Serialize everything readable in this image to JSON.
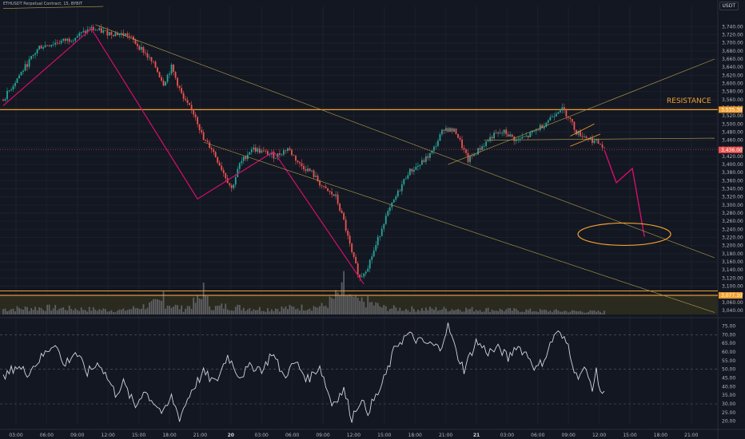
{
  "header": {
    "symbol_line": "ETHUSDT Perpetual Contract, 15, BYBIT",
    "currency": "USDT"
  },
  "annotation": {
    "resistance_label": "RESISTANCE"
  },
  "price_tags": {
    "resistance": "3,535.30",
    "current": "3,436.00",
    "support": "3,077.10"
  },
  "colors": {
    "up": "#26a69a",
    "down": "#ef5350",
    "orange": "#f0a030",
    "trend": "#d40e6b",
    "bg": "#131722"
  },
  "chart_data": [
    {
      "type": "candlestick",
      "title": "",
      "ylim": [
        3030,
        3790
      ],
      "y_ticks": [
        3040,
        3060,
        3080,
        3100,
        3120,
        3140,
        3160,
        3180,
        3200,
        3220,
        3240,
        3260,
        3280,
        3300,
        3320,
        3340,
        3360,
        3380,
        3400,
        3420,
        3440,
        3460,
        3480,
        3500,
        3520,
        3540,
        3560,
        3580,
        3600,
        3620,
        3640,
        3660,
        3680,
        3700,
        3720,
        3740
      ],
      "x_ticks": [
        "03:00",
        "06:00",
        "09:00",
        "12:00",
        "15:00",
        "18:00",
        "21:00",
        "20",
        "03:00",
        "06:00",
        "09:00",
        "12:00",
        "15:00",
        "18:00",
        "21:00",
        "21",
        "03:00",
        "06:00",
        "09:00",
        "12:00",
        "15:00",
        "18:00",
        "21:00"
      ],
      "price_path": [
        [
          0,
          3560
        ],
        [
          8,
          3620
        ],
        [
          18,
          3690
        ],
        [
          26,
          3700
        ],
        [
          34,
          3710
        ],
        [
          44,
          3735
        ],
        [
          52,
          3725
        ],
        [
          62,
          3720
        ],
        [
          70,
          3680
        ],
        [
          76,
          3640
        ],
        [
          80,
          3600
        ],
        [
          84,
          3640
        ],
        [
          90,
          3560
        ],
        [
          96,
          3520
        ],
        [
          100,
          3460
        ],
        [
          104,
          3440
        ],
        [
          108,
          3400
        ],
        [
          114,
          3340
        ],
        [
          118,
          3400
        ],
        [
          124,
          3440
        ],
        [
          130,
          3430
        ],
        [
          136,
          3420
        ],
        [
          142,
          3440
        ],
        [
          148,
          3400
        ],
        [
          154,
          3380
        ],
        [
          160,
          3340
        ],
        [
          166,
          3320
        ],
        [
          170,
          3260
        ],
        [
          174,
          3180
        ],
        [
          178,
          3120
        ],
        [
          182,
          3150
        ],
        [
          186,
          3200
        ],
        [
          190,
          3260
        ],
        [
          196,
          3320
        ],
        [
          202,
          3380
        ],
        [
          208,
          3400
        ],
        [
          214,
          3430
        ],
        [
          220,
          3490
        ],
        [
          226,
          3480
        ],
        [
          232,
          3410
        ],
        [
          238,
          3440
        ],
        [
          244,
          3470
        ],
        [
          250,
          3480
        ],
        [
          256,
          3460
        ],
        [
          262,
          3470
        ],
        [
          270,
          3500
        ],
        [
          278,
          3540
        ],
        [
          282,
          3520
        ],
        [
          286,
          3480
        ],
        [
          290,
          3470
        ],
        [
          294,
          3460
        ],
        [
          298,
          3450
        ],
        [
          300,
          3436
        ]
      ],
      "trend_path": [
        [
          0,
          3545
        ],
        [
          44,
          3735
        ],
        [
          97,
          3315
        ],
        [
          135,
          3432
        ],
        [
          180,
          3105
        ]
      ],
      "projection_path": [
        [
          300,
          3436
        ],
        [
          306,
          3355
        ],
        [
          314,
          3390
        ],
        [
          320,
          3222
        ]
      ],
      "levels": {
        "resistance": 3535.3,
        "current": 3436.0,
        "support": 3077.1
      }
    },
    {
      "type": "bar",
      "title": "",
      "ylabel": "",
      "levels": [
        [
          0,
          8
        ],
        [
          20,
          10
        ],
        [
          40,
          8
        ],
        [
          60,
          6
        ],
        [
          80,
          18
        ],
        [
          90,
          8
        ],
        [
          100,
          25
        ],
        [
          105,
          10
        ],
        [
          110,
          12
        ],
        [
          130,
          8
        ],
        [
          160,
          12
        ],
        [
          170,
          34
        ],
        [
          176,
          15
        ],
        [
          180,
          20
        ],
        [
          190,
          10
        ],
        [
          200,
          8
        ],
        [
          230,
          8
        ],
        [
          260,
          6
        ],
        [
          280,
          5
        ],
        [
          300,
          4
        ]
      ]
    },
    {
      "type": "line",
      "title": "",
      "ylim": [
        18,
        78
      ],
      "y_ticks": [
        20,
        25,
        30,
        35,
        40,
        45,
        50,
        55,
        60,
        65,
        70,
        75
      ],
      "guides": [
        30,
        50,
        70
      ],
      "values": [
        [
          0,
          44
        ],
        [
          6,
          52
        ],
        [
          12,
          48
        ],
        [
          20,
          58
        ],
        [
          26,
          66
        ],
        [
          30,
          52
        ],
        [
          36,
          60
        ],
        [
          42,
          48
        ],
        [
          48,
          54
        ],
        [
          56,
          36
        ],
        [
          60,
          42
        ],
        [
          66,
          28
        ],
        [
          70,
          38
        ],
        [
          76,
          30
        ],
        [
          80,
          24
        ],
        [
          84,
          34
        ],
        [
          88,
          22
        ],
        [
          94,
          38
        ],
        [
          100,
          48
        ],
        [
          106,
          42
        ],
        [
          112,
          58
        ],
        [
          118,
          46
        ],
        [
          124,
          52
        ],
        [
          130,
          50
        ],
        [
          134,
          60
        ],
        [
          140,
          46
        ],
        [
          146,
          54
        ],
        [
          152,
          44
        ],
        [
          158,
          52
        ],
        [
          164,
          30
        ],
        [
          170,
          38
        ],
        [
          174,
          22
        ],
        [
          178,
          32
        ],
        [
          182,
          26
        ],
        [
          188,
          38
        ],
        [
          192,
          50
        ],
        [
          196,
          64
        ],
        [
          202,
          70
        ],
        [
          208,
          66
        ],
        [
          214,
          64
        ],
        [
          218,
          62
        ],
        [
          222,
          76
        ],
        [
          226,
          60
        ],
        [
          230,
          50
        ],
        [
          236,
          66
        ],
        [
          242,
          60
        ],
        [
          248,
          62
        ],
        [
          252,
          56
        ],
        [
          256,
          64
        ],
        [
          262,
          58
        ],
        [
          266,
          50
        ],
        [
          270,
          56
        ],
        [
          276,
          72
        ],
        [
          282,
          64
        ],
        [
          286,
          46
        ],
        [
          290,
          50
        ],
        [
          294,
          40
        ],
        [
          296,
          48
        ],
        [
          298,
          38
        ],
        [
          300,
          35
        ]
      ]
    }
  ]
}
